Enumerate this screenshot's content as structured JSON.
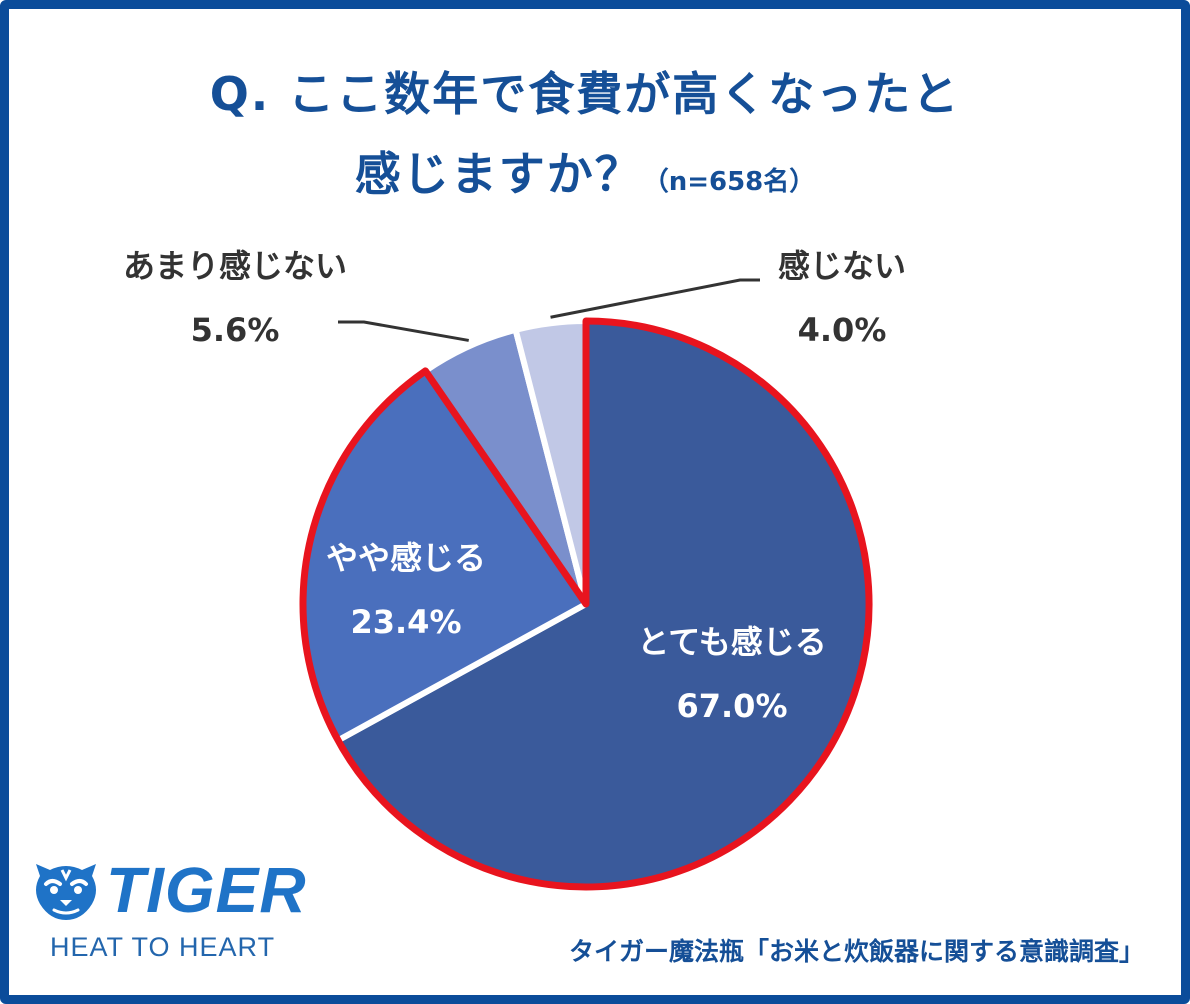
{
  "title_line1": "Q. ここ数年で食費が高くなったと",
  "title_line2": "感じますか？",
  "sample_note": "（n=658名）",
  "chart_data": {
    "type": "pie",
    "title": "Q. ここ数年で食費が高くなったと感じますか？",
    "unit": "%",
    "categories": [
      "とても感じる",
      "やや感じる",
      "あまり感じない",
      "感じない"
    ],
    "values": [
      67.0,
      23.4,
      5.6,
      4.0
    ],
    "value_labels": [
      "67.0%",
      "23.4%",
      "5.6%",
      "4.0%"
    ],
    "colors": [
      "#3a5a9b",
      "#4a6fbd",
      "#7a8fcc",
      "#c1c8e6"
    ],
    "highlight_color": "#e8141e",
    "highlighted_categories": [
      "とても感じる",
      "やや感じる"
    ]
  },
  "logo": {
    "brand": "TIGER",
    "tagline": "HEAT TO HEART",
    "icon": "tiger-face-icon",
    "color": "#1f73c7"
  },
  "source": "タイガー魔法瓶「お米と炊飯器に関する意識調査」",
  "frame_color": "#0b4c9a",
  "title_color": "#154f97"
}
